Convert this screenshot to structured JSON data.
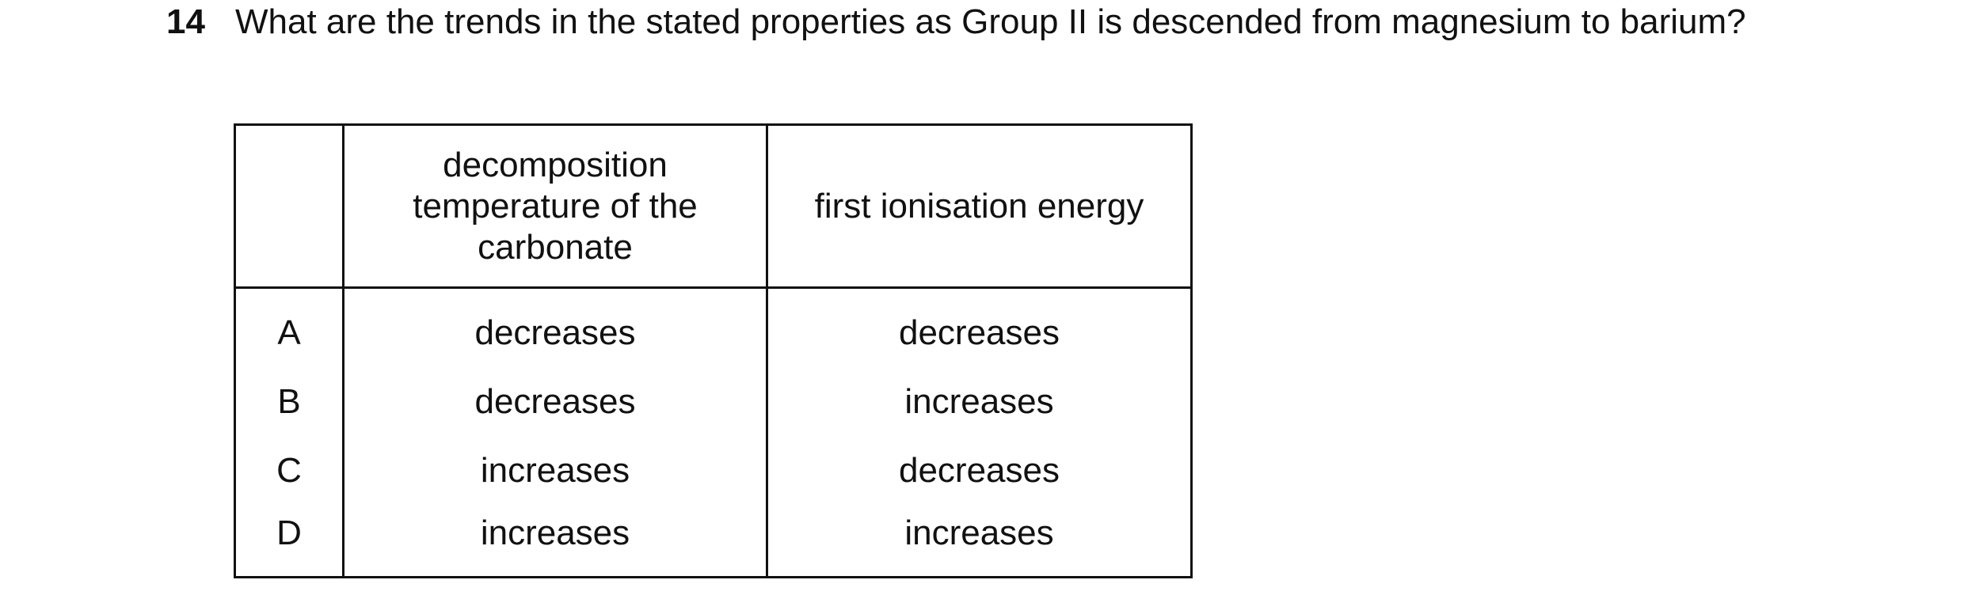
{
  "question": {
    "number": "14",
    "text": "What are the trends in the stated properties as Group II is descended from magnesium to barium?"
  },
  "table": {
    "headers": {
      "letter": "",
      "property_1": "decomposition temperature of the carbonate",
      "property_2": "first ionisation energy"
    },
    "rows": [
      {
        "letter": "A",
        "property_1": "decreases",
        "property_2": "decreases"
      },
      {
        "letter": "B",
        "property_1": "decreases",
        "property_2": "increases"
      },
      {
        "letter": "C",
        "property_1": "increases",
        "property_2": "decreases"
      },
      {
        "letter": "D",
        "property_1": "increases",
        "property_2": "increases"
      }
    ]
  }
}
